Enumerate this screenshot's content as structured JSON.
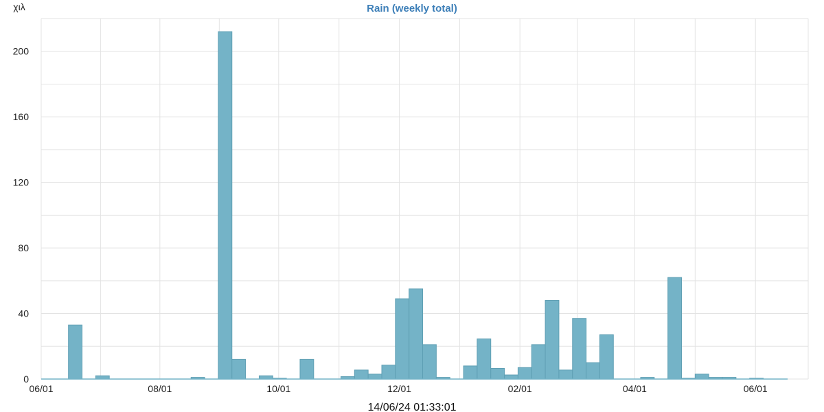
{
  "chart_data": {
    "type": "bar",
    "title": "Rain (weekly total)",
    "ylabel": "χιλ",
    "xlabel": "14/06/24 01:33:01",
    "x_tick_labels": [
      "06/01",
      "08/01",
      "10/01",
      "12/01",
      "02/01",
      "04/01",
      "06/01"
    ],
    "x_ticks_week_index": [
      0,
      8.71,
      17.43,
      26.29,
      35.14,
      43.57,
      52.43
    ],
    "ylim": [
      0,
      220
    ],
    "y_ticks": [
      0,
      40,
      80,
      120,
      160,
      200
    ],
    "grid": true,
    "bar_color": "#74b3c7",
    "bar_edge_color": "#5f9fb4",
    "series": [
      {
        "values": [
          0,
          0,
          33,
          0,
          2,
          0,
          0,
          0,
          0,
          0,
          0,
          1,
          0,
          212,
          12,
          0,
          2,
          0.5,
          0,
          12,
          0,
          0,
          1.5,
          5.5,
          3,
          8.5,
          49,
          55,
          21,
          1,
          0,
          8,
          24.5,
          6.5,
          2.5,
          7,
          21,
          48,
          5.5,
          37,
          10,
          27,
          0,
          0,
          1,
          0,
          62,
          0.5,
          3,
          1,
          1,
          0,
          0.5,
          0
        ]
      }
    ]
  }
}
